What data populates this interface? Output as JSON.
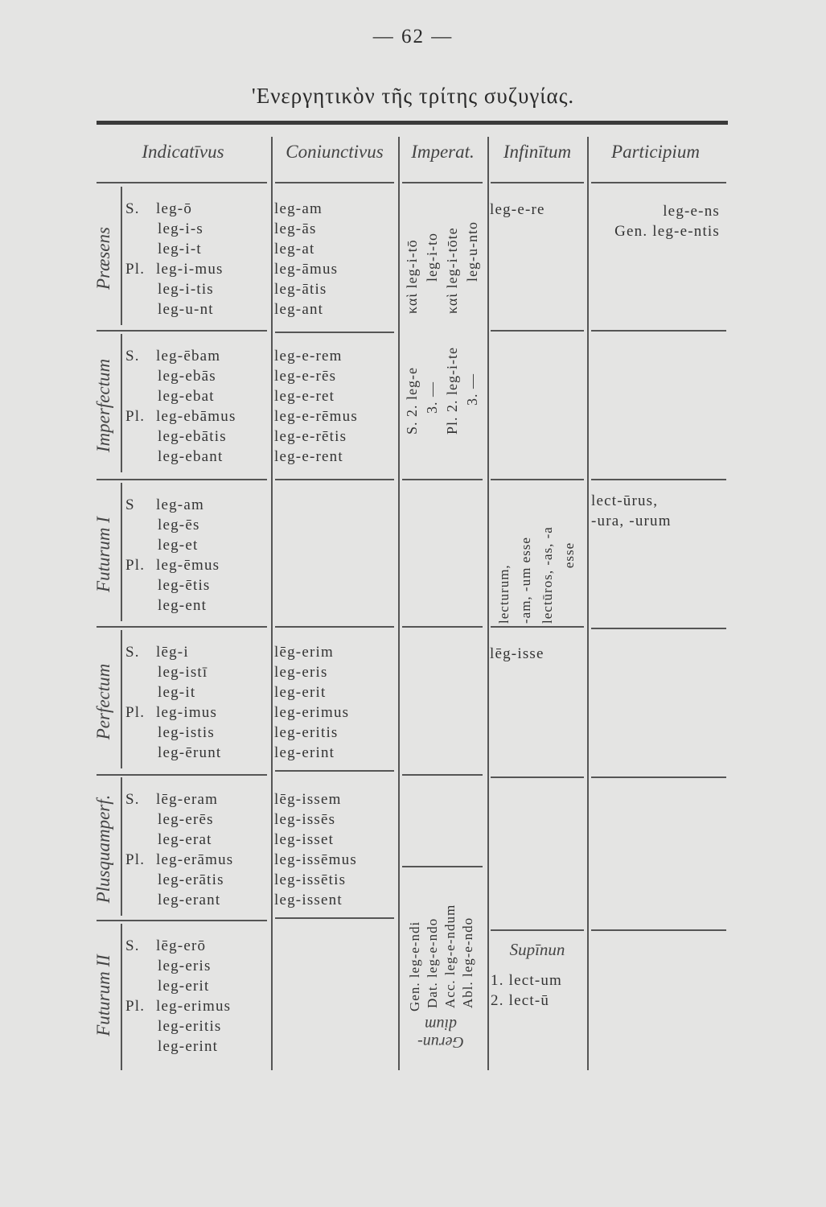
{
  "page_number": "— 62 —",
  "title": "'Ενεργητικὸν τῆς τρίτης συζυγίας.",
  "headers": {
    "indicative": "Indicatīvus",
    "subjunctive": "Coniunctivus",
    "imperative": "Imperat.",
    "infinitive": "Infinītum",
    "participle": "Participium"
  },
  "tenses": [
    {
      "name": "Præsens",
      "indicative": [
        [
          "S.",
          "leg-ō"
        ],
        [
          "",
          "leg-i-s"
        ],
        [
          "",
          "leg-i-t"
        ],
        [
          "Pl.",
          "leg-i-mus"
        ],
        [
          "",
          "leg-i-tis"
        ],
        [
          "",
          "leg-u-nt"
        ]
      ],
      "subjunctive": [
        "leg-am",
        "leg-ās",
        "leg-at",
        "leg-āmus",
        "leg-ātis",
        "leg-ant"
      ]
    },
    {
      "name": "Imperfectum",
      "indicative": [
        [
          "S.",
          "leg-ēbam"
        ],
        [
          "",
          "leg-ebās"
        ],
        [
          "",
          "leg-ebat"
        ],
        [
          "Pl.",
          "leg-ebāmus"
        ],
        [
          "",
          "leg-ebātis"
        ],
        [
          "",
          "leg-ebant"
        ]
      ],
      "subjunctive": [
        "leg-e-rem",
        "leg-e-rēs",
        "leg-e-ret",
        "leg-e-rēmus",
        "leg-e-rētis",
        "leg-e-rent"
      ]
    },
    {
      "name": "Futurum I",
      "indicative": [
        [
          "S",
          "leg-am"
        ],
        [
          "",
          "leg-ēs"
        ],
        [
          "",
          "leg-et"
        ],
        [
          "Pl.",
          "leg-ēmus"
        ],
        [
          "",
          "leg-ētis"
        ],
        [
          "",
          "leg-ent"
        ]
      ],
      "subjunctive": []
    },
    {
      "name": "Perfectum",
      "indicative": [
        [
          "S.",
          "lēg-i"
        ],
        [
          "",
          "leg-istī"
        ],
        [
          "",
          "leg-it"
        ],
        [
          "Pl.",
          "leg-imus"
        ],
        [
          "",
          "leg-istis"
        ],
        [
          "",
          "leg-ērunt"
        ]
      ],
      "subjunctive": [
        "lēg-erim",
        "leg-eris",
        "leg-erit",
        "leg-erimus",
        "leg-eritis",
        "leg-erint"
      ]
    },
    {
      "name": "Plusquamperf.",
      "indicative": [
        [
          "S.",
          "lēg-eram"
        ],
        [
          "",
          "leg-erēs"
        ],
        [
          "",
          "leg-erat"
        ],
        [
          "Pl.",
          "leg-erāmus"
        ],
        [
          "",
          "leg-erātis"
        ],
        [
          "",
          "leg-erant"
        ]
      ],
      "subjunctive": [
        "lēg-issem",
        "leg-issēs",
        "leg-isset",
        "leg-issēmus",
        "leg-issētis",
        "leg-issent"
      ]
    },
    {
      "name": "Futurum II",
      "indicative": [
        [
          "S.",
          "lēg-erō"
        ],
        [
          "",
          "leg-eris"
        ],
        [
          "",
          "leg-erit"
        ],
        [
          "Pl.",
          "leg-erimus"
        ],
        [
          "",
          "leg-eritis"
        ],
        [
          "",
          "leg-erint"
        ]
      ],
      "subjunctive": []
    }
  ],
  "imperative": [
    [
      "S. 2. leg-e",
      "καὶ leg-i-tō"
    ],
    [
      "3. —",
      "leg-i-to"
    ],
    [
      "Pl. 2. leg-i-te",
      "καὶ leg-i-tōte"
    ],
    [
      "3. —",
      "leg-u-nto"
    ]
  ],
  "infinitive": {
    "present": "leg-e-re",
    "future": [
      "lecturum,",
      "-am, -um esse",
      "lectūros, -as, -a",
      "esse"
    ],
    "perfect": "lēg-isse"
  },
  "participle": {
    "present": [
      "leg-e-ns",
      "Gen. leg-e-ntis"
    ],
    "future": [
      "lect-ūrus,",
      "-ura, -urum"
    ]
  },
  "gerundium": {
    "label": [
      "Gerun-",
      "dium"
    ],
    "forms": [
      "Gen. leg-e-ndi",
      "Dat. leg-e-ndo",
      "Acc. leg-e-ndum",
      "Abl. leg-e-ndo"
    ]
  },
  "supinum": {
    "label": "Supīnun",
    "forms": [
      "1. lect-um",
      "2. lect-ū"
    ]
  }
}
